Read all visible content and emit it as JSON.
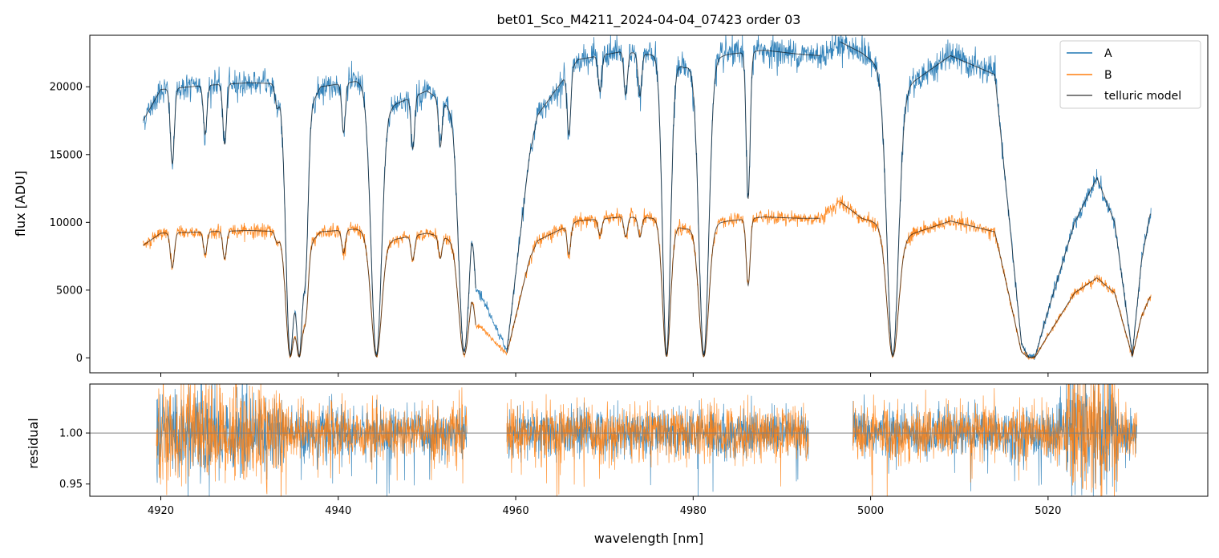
{
  "chart_data": [
    {
      "type": "line",
      "title": "bet01_Sco_M4211_2024-04-04_07423  order 03",
      "xlabel": "",
      "ylabel": "flux [ADU]",
      "xlim": [
        4912,
        5038
      ],
      "ylim": [
        -1100,
        23800
      ],
      "yticks": [
        0,
        5000,
        10000,
        15000,
        20000
      ],
      "ytick_labels": [
        "0",
        "5000",
        "10000",
        "15000",
        "20000"
      ],
      "grid": false,
      "legend": {
        "placement": "top-right",
        "entries": [
          "A",
          "B",
          "telluric model"
        ]
      },
      "gaps": [
        [
          4955.5,
          4959.0
        ],
        [
          4994.3,
          4996.6
        ]
      ],
      "continuum": {
        "A": {
          "x": [
            4918,
            4920,
            4925,
            4930,
            4934,
            4935.6,
            4938,
            4942,
            4944.5,
            4946,
            4950,
            4953,
            4955,
            4955.5,
            4959,
            4962,
            4967,
            4972,
            4976,
            4979,
            4984,
            4988,
            4992,
            4994.3,
            4996.6,
            4999,
            5002,
            5004,
            5009,
            5014,
            5017,
            5018.5,
            5023,
            5025.5,
            5027.5,
            5029.5,
            5030.5,
            5031.5
          ],
          "y": [
            17500,
            19800,
            20100,
            20300,
            20200,
            16800,
            20000,
            20400,
            20000,
            18600,
            19700,
            18300,
            14000,
            5500,
            500,
            17500,
            22000,
            22600,
            22300,
            21400,
            22400,
            22700,
            22400,
            22300,
            23300,
            22500,
            21000,
            20000,
            22300,
            20900,
            1200,
            200,
            10000,
            13300,
            10000,
            200,
            7000,
            10600
          ]
        },
        "B": {
          "x": [
            4918,
            4920,
            4925,
            4930,
            4934,
            4935.6,
            4938,
            4942,
            4944.5,
            4946,
            4950,
            4953,
            4955,
            4955.5,
            4959,
            4962,
            4967,
            4972,
            4976,
            4979,
            4984,
            4988,
            4992,
            4994.3,
            4996.6,
            4999,
            5002,
            5004,
            5009,
            5014,
            5017,
            5018.5,
            5023,
            5025.5,
            5027.5,
            5029.5,
            5030.5,
            5031.5
          ],
          "y": [
            8300,
            9200,
            9300,
            9400,
            9300,
            7500,
            9300,
            9500,
            9200,
            8700,
            9200,
            8700,
            6800,
            2600,
            300,
            8500,
            10100,
            10400,
            10300,
            9500,
            10100,
            10400,
            10300,
            10300,
            11500,
            10300,
            9700,
            9000,
            10100,
            9300,
            500,
            100,
            4800,
            5900,
            4800,
            100,
            3000,
            4500
          ]
        }
      },
      "absorption_lines": [
        {
          "x": 4921.3,
          "depth": 0.28,
          "width": 0.22
        },
        {
          "x": 4925.0,
          "depth": 0.18,
          "width": 0.2
        },
        {
          "x": 4927.2,
          "depth": 0.22,
          "width": 0.2
        },
        {
          "x": 4933.1,
          "depth": 0.08,
          "width": 0.22
        },
        {
          "x": 4934.6,
          "depth": 0.99,
          "width": 0.5
        },
        {
          "x": 4935.6,
          "depth": 0.99,
          "width": 0.45
        },
        {
          "x": 4936.3,
          "depth": 0.55,
          "width": 0.3
        },
        {
          "x": 4940.6,
          "depth": 0.18,
          "width": 0.2
        },
        {
          "x": 4944.3,
          "depth": 0.99,
          "width": 0.6
        },
        {
          "x": 4948.4,
          "depth": 0.2,
          "width": 0.2
        },
        {
          "x": 4951.5,
          "depth": 0.18,
          "width": 0.2
        },
        {
          "x": 4954.2,
          "depth": 0.97,
          "width": 0.6
        },
        {
          "x": 4962.0,
          "depth": 0.06,
          "width": 0.2
        },
        {
          "x": 4966.0,
          "depth": 0.22,
          "width": 0.2
        },
        {
          "x": 4969.5,
          "depth": 0.12,
          "width": 0.2
        },
        {
          "x": 4972.4,
          "depth": 0.14,
          "width": 0.2
        },
        {
          "x": 4974.0,
          "depth": 0.14,
          "width": 0.2
        },
        {
          "x": 4977.0,
          "depth": 0.99,
          "width": 0.45
        },
        {
          "x": 4981.2,
          "depth": 0.99,
          "width": 0.55
        },
        {
          "x": 4986.2,
          "depth": 0.48,
          "width": 0.22
        },
        {
          "x": 5002.5,
          "depth": 0.99,
          "width": 0.65
        },
        {
          "x": 5018.0,
          "depth": 0.9,
          "width": 0.5
        }
      ]
    },
    {
      "type": "line",
      "title": "",
      "xlabel": "wavelength [nm]",
      "ylabel": "residual",
      "xlim": [
        4912,
        5038
      ],
      "ylim": [
        0.938,
        1.048
      ],
      "xticks": [
        4920,
        4940,
        4960,
        4980,
        5000,
        5020
      ],
      "xtick_labels": [
        "4920",
        "4940",
        "4960",
        "4980",
        "5000",
        "5020"
      ],
      "yticks": [
        0.95,
        1.0
      ],
      "ytick_labels": [
        "0.95",
        "1.00"
      ],
      "reference_line": 1.0,
      "grid": false,
      "segments": [
        [
          4919.5,
          4954.5
        ],
        [
          4959.0,
          4993.0
        ],
        [
          4998.0,
          5030.0
        ]
      ],
      "noise_sigma": {
        "A": 0.012,
        "B": 0.014
      }
    }
  ],
  "legend": {
    "A": "A",
    "B": "B",
    "model": "telluric model"
  },
  "colors": {
    "A": "#1f77b4",
    "B": "#ff7f0e",
    "model": "#000000",
    "refline": "#7f7f7f"
  }
}
